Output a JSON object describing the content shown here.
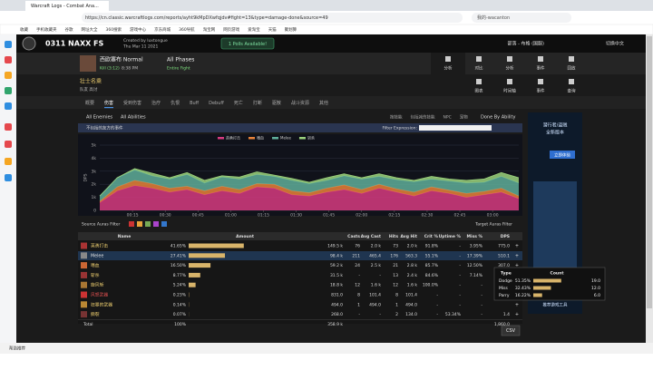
{
  "browser": {
    "tab_title": "Warcraft Logs - Combat Ana...",
    "url": "https://cn.classic.warcraftlogs.com/reports/ayht9kMpDXwfqjdv#fight=13&type=damage-done&source=49",
    "search": "我的-wacanton",
    "bookmarks": [
      "收藏",
      "手机收藏夹",
      "谷歌",
      "网址大全",
      "360搜索",
      "游戏中心",
      "京东商城",
      "360导航",
      "淘宝网",
      "网页游戏",
      "爱淘宝",
      "天猫",
      "聚划算"
    ],
    "status": "帮助推荐"
  },
  "site": {
    "report_title": "0311 NAXX FS",
    "created_by": "Created by luxtongue",
    "date": "Thu Mar 11 2021",
    "polls": "1 Polls Available!",
    "user": "部落 - 布格 (国服)",
    "language": "切换中文"
  },
  "fight": {
    "boss": "西欧塞布 Normal",
    "kill": "Kill (3:12)",
    "time": "8:38 PM",
    "phases": "All Phases",
    "range": "Entire Fight",
    "nav": [
      "分析",
      "对比",
      "分析",
      "事件",
      "回放"
    ]
  },
  "player": {
    "name": "壮士名乘",
    "sub": "队友 高讨",
    "views": [
      "图表",
      "时间轴",
      "事件",
      "查询"
    ]
  },
  "tabs": [
    "概要",
    "伤害",
    "受到伤害",
    "治疗",
    "仇恨",
    "Buff",
    "Debuff",
    "死亡",
    "打断",
    "驱散",
    "战斗资源",
    "其他"
  ],
  "filters": {
    "enemies": "All Enemies",
    "abilities": "All Abilities",
    "views": [
      "按技能",
      "包括减伤技能",
      "NPC",
      "宠物"
    ],
    "group": "Done By Ability",
    "friendly": "不包括的友方的事件",
    "expression": "Filter Expression:",
    "source_auras": "Source Auras Filter",
    "target_auras": "Target Auras Filter",
    "csv": "CSV"
  },
  "chart_data": {
    "type": "area",
    "stacked": true,
    "y_label": "DPS",
    "x": [
      0,
      8,
      16,
      24,
      32,
      40,
      48,
      56,
      64,
      72,
      80,
      88,
      96,
      104,
      112,
      120,
      128,
      136,
      144,
      152,
      160,
      168,
      176,
      184,
      192
    ],
    "series": [
      {
        "name": "英勇打击",
        "color": "#d63b80",
        "values": [
          600,
          1500,
          1900,
          1700,
          1400,
          1600,
          1200,
          1500,
          1300,
          1800,
          1700,
          1200,
          1100,
          1400,
          1600,
          1300,
          1700,
          1400,
          1100,
          1500,
          1300,
          1000,
          1200,
          1400,
          900
        ]
      },
      {
        "name": "嗜血",
        "color": "#e8833a",
        "values": [
          100,
          300,
          400,
          350,
          300,
          250,
          300,
          350,
          300,
          250,
          300,
          300,
          250,
          300,
          350,
          300,
          300,
          250,
          300,
          300,
          250,
          300,
          250,
          300,
          200
        ]
      },
      {
        "name": "Melee",
        "color": "#5fae9a",
        "values": [
          400,
          700,
          800,
          600,
          700,
          900,
          600,
          700,
          800,
          700,
          600,
          800,
          700,
          600,
          700,
          800,
          600,
          700,
          800,
          600,
          700,
          800,
          700,
          900,
          1000
        ]
      },
      {
        "name": "斩杀",
        "color": "#9bd27c",
        "values": [
          0,
          0,
          100,
          200,
          100,
          150,
          200,
          100,
          150,
          200,
          100,
          150,
          100,
          200,
          150,
          100,
          200,
          150,
          100,
          200,
          150,
          200,
          250,
          300,
          400
        ]
      }
    ],
    "xlim": [
      0,
      192
    ],
    "ylim": [
      0,
      5000
    ],
    "xticks": [
      {
        "value": 15,
        "label": "00:15"
      },
      {
        "value": 30,
        "label": "00:30"
      },
      {
        "value": 45,
        "label": "00:45"
      },
      {
        "value": 60,
        "label": "01:00"
      },
      {
        "value": 75,
        "label": "01:15"
      },
      {
        "value": 90,
        "label": "01:30"
      },
      {
        "value": 105,
        "label": "01:45"
      },
      {
        "value": 120,
        "label": "02:00"
      },
      {
        "value": 135,
        "label": "02:15"
      },
      {
        "value": 150,
        "label": "02:30"
      },
      {
        "value": 165,
        "label": "02:45"
      },
      {
        "value": 180,
        "label": "03:00"
      }
    ],
    "yticks": [
      0,
      {
        "value": 1000,
        "label": "1k"
      },
      {
        "value": 2000,
        "label": "2k"
      },
      {
        "value": 3000,
        "label": "3k"
      },
      {
        "value": 4000,
        "label": "4k"
      },
      {
        "value": 5000,
        "label": "5k"
      }
    ],
    "grid": true
  },
  "table": {
    "columns": [
      "Name",
      "Amount",
      "Casts",
      "Avg Cast",
      "Hits",
      "Avg Hit",
      "Crit %",
      "Uptime %",
      "Miss %",
      "DPS"
    ],
    "rows": [
      {
        "name": "英勇打击",
        "color": "#f0d070",
        "share": 41.65,
        "share_label": "41.65%",
        "amount": "149.5 k",
        "casts": "76",
        "avg_cast": "2.0 k",
        "hits": "73",
        "avg_hit": "2.0 k",
        "crit": "91.8%",
        "uptime": "-",
        "miss": "3.95%",
        "dps": "775.0"
      },
      {
        "name": "Melee",
        "color": "#e0e0e0",
        "share": 27.41,
        "share_label": "27.41%",
        "amount": "98.4 k",
        "casts": "211",
        "avg_cast": "465.4",
        "hits": "176",
        "avg_hit": "563.3",
        "crit": "55.1%",
        "uptime": "-",
        "miss": "17.39%",
        "dps": "510.1"
      },
      {
        "name": "嗜血",
        "color": "#f0d070",
        "share": 16.5,
        "share_label": "16.50%",
        "amount": "59.2 k",
        "casts": "24",
        "avg_cast": "2.5 k",
        "hits": "21",
        "avg_hit": "2.8 k",
        "crit": "85.7%",
        "uptime": "-",
        "miss": "12.50%",
        "dps": "307.0"
      },
      {
        "name": "斩杀",
        "color": "#f0d070",
        "share": 8.77,
        "share_label": "8.77%",
        "amount": "31.5 k",
        "casts": "-",
        "avg_cast": "-",
        "hits": "13",
        "avg_hit": "2.4 k",
        "crit": "84.6%",
        "uptime": "-",
        "miss": "7.14%"
      },
      {
        "name": "旋风斩",
        "color": "#f0d070",
        "share": 5.24,
        "share_label": "5.24%",
        "amount": "18.8 k",
        "casts": "12",
        "avg_cast": "1.6 k",
        "hits": "12",
        "avg_hit": "1.6 k",
        "crit": "100.0%",
        "uptime": "-",
        "miss": "-"
      },
      {
        "name": "风怒武器",
        "color": "#e05050",
        "share": 0.23,
        "share_label": "0.23%",
        "amount": "831.0",
        "casts": "8",
        "avg_cast": "101.4",
        "hits": "8",
        "avg_hit": "101.4",
        "crit": "-",
        "uptime": "-",
        "miss": "-"
      },
      {
        "name": "狂暴的武器",
        "color": "#f0d070",
        "share": 0.14,
        "share_label": "0.14%",
        "amount": "494.0",
        "casts": "1",
        "avg_cast": "494.0",
        "hits": "1",
        "avg_hit": "494.0",
        "crit": "-",
        "uptime": "-",
        "miss": "-"
      },
      {
        "name": "撕裂",
        "color": "#f0d070",
        "share": 0.07,
        "share_label": "0.07%",
        "amount": "268.0",
        "casts": "-",
        "avg_cast": "-",
        "hits": "2",
        "avg_hit": "134.0",
        "crit": "-",
        "uptime": "53.34%",
        "miss": "-",
        "dps": "1.4"
      }
    ],
    "total": {
      "name": "Total",
      "share": "100%",
      "amount": "358.9 k",
      "dps": "1,860.0"
    }
  },
  "tooltip": {
    "columns": [
      "Type",
      "Count"
    ],
    "rows": [
      {
        "type": "Dodge",
        "pct": 51.35,
        "pct_label": "51.35%",
        "count": 19,
        "count_label": "19.0"
      },
      {
        "type": "Miss",
        "pct": 32.43,
        "pct_label": "32.43%",
        "count": 12,
        "count_label": "12.0"
      },
      {
        "type": "Parry",
        "pct": 16.22,
        "pct_label": "16.22%",
        "count": 6,
        "count_label": "6.0"
      }
    ]
  },
  "ad": {
    "lines": [
      "潜行者/盗贼",
      "全新版本"
    ],
    "button": "立即体验",
    "footer": "推荐游戏工具"
  }
}
